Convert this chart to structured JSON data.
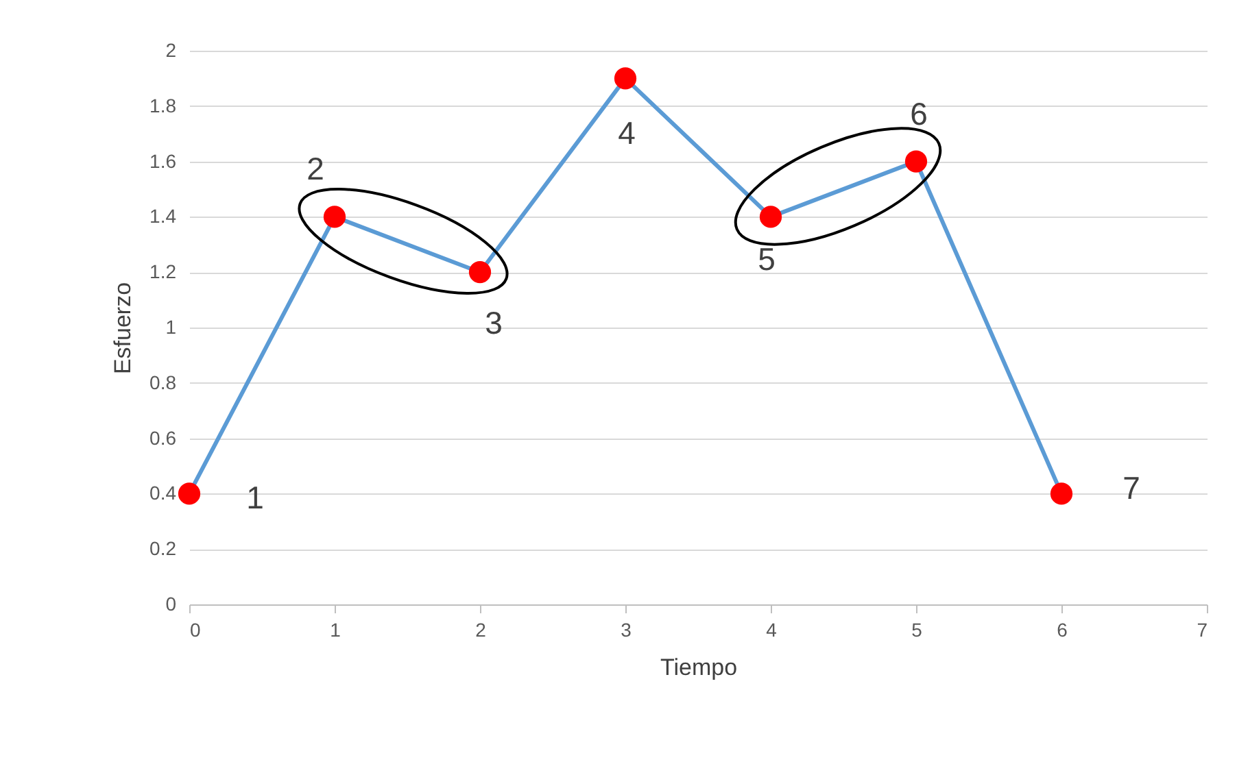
{
  "chart_data": {
    "type": "line",
    "xlabel": "Tiempo",
    "ylabel": "Esfuerzo",
    "x": [
      0,
      1,
      2,
      3,
      4,
      5,
      6
    ],
    "series": [
      {
        "color": "#5b9bd5",
        "values": [
          0.4,
          1.4,
          1.2,
          1.9,
          1.4,
          1.6,
          0.4
        ]
      }
    ],
    "marker": "circle",
    "line_style": "solid",
    "xlim": [
      0,
      7
    ],
    "xticks": [
      0,
      1,
      2,
      3,
      4,
      5,
      6,
      7
    ],
    "ylim": [
      0,
      2
    ],
    "yticks": [
      0,
      0.2,
      0.4,
      0.6,
      0.8,
      1,
      1.2,
      1.4,
      1.6,
      1.8,
      2
    ],
    "grid": "y",
    "annotations": [
      {
        "text": "1",
        "x": 0,
        "y": 0.4
      },
      {
        "text": "2",
        "x": 1,
        "y": 1.4
      },
      {
        "text": "3",
        "x": 2,
        "y": 1.2
      },
      {
        "text": "4",
        "x": 3,
        "y": 1.9
      },
      {
        "text": "5",
        "x": 4,
        "y": 1.4
      },
      {
        "text": "6",
        "x": 5,
        "y": 1.6
      },
      {
        "text": "7",
        "x": 6,
        "y": 0.4
      }
    ]
  }
}
